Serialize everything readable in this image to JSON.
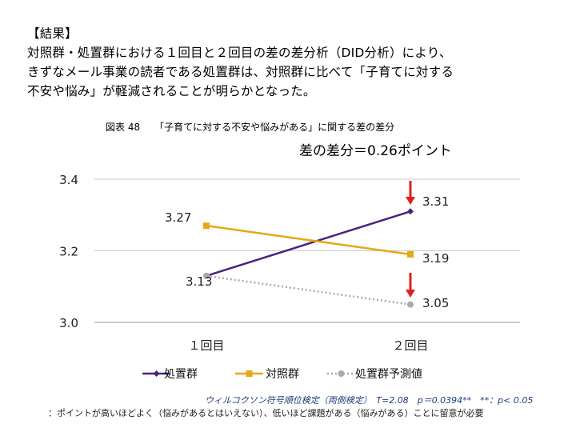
{
  "result": {
    "heading": "【結果】",
    "lines": [
      "対照群・処置群における１回目と２回目の差の差分析（DID分析）により、",
      "きずなメール事業の読者である処置群は、対照群に比べて「子育てに対する",
      "不安や悩み」が軽減されることが明らかとなった。"
    ]
  },
  "figure": {
    "number": "図表 48",
    "caption": "「子育てに対する不安や悩みがある」に関する差の差分",
    "difference_label": "差の差分＝0.26ポイント"
  },
  "chart_data": {
    "type": "line",
    "categories": [
      "１回目",
      "２回目"
    ],
    "ylim": [
      3.0,
      3.4
    ],
    "yticks": [
      3.0,
      3.2,
      3.4
    ],
    "ytick_labels": [
      "3.0",
      "3.2",
      "3.4"
    ],
    "series": [
      {
        "name": "処置群",
        "values": [
          3.13,
          3.31
        ],
        "labels": [
          "3.13",
          "3.31"
        ],
        "color": "#4b2282",
        "marker": "diamond",
        "dash": "solid"
      },
      {
        "name": "対照群",
        "values": [
          3.27,
          3.19
        ],
        "labels": [
          "3.27",
          "3.19"
        ],
        "color": "#e8a817",
        "marker": "square",
        "dash": "solid"
      },
      {
        "name": "処置群予測値",
        "values": [
          3.13,
          3.05
        ],
        "labels": [
          "",
          "3.05"
        ],
        "color": "#aaaaaa",
        "marker": "circle",
        "dash": "dotted"
      }
    ],
    "arrow_color": "#e0201a",
    "grid": true,
    "legend": "bottom"
  },
  "footer": {
    "test": "ウィルコクソン符号順位検定（両側検定）　T=2.08　p＝0.0394**　**：p< 0.05",
    "note": "：ポイントが高いほどよく（悩みがあるとはいえない）、低いほど課題がある（悩みがある）ことに留意が必要"
  }
}
